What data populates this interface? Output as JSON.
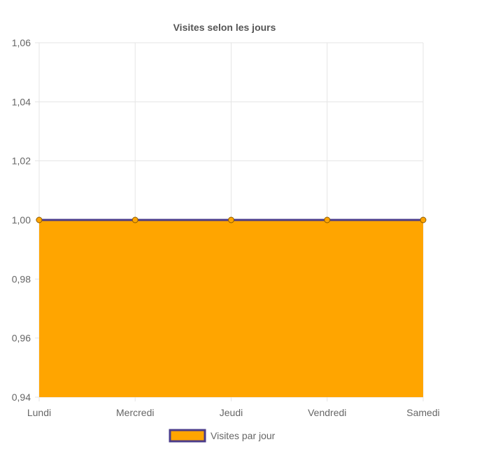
{
  "chart_data": {
    "type": "area",
    "title": "Visites selon les jours",
    "xlabel": "",
    "ylabel": "",
    "categories": [
      "Lundi",
      "Mercredi",
      "Jeudi",
      "Vendredi",
      "Samedi"
    ],
    "series": [
      {
        "name": "Visites par jour",
        "values": [
          1,
          1,
          1,
          1,
          1
        ]
      }
    ],
    "ylim": [
      0.94,
      1.06
    ],
    "yticks": [
      0.94,
      0.96,
      0.98,
      1.0,
      1.02,
      1.04,
      1.06
    ],
    "ytick_labels": [
      "0,94",
      "0,96",
      "0,98",
      "1,00",
      "1,02",
      "1,04",
      "1,06"
    ],
    "grid": true,
    "legend_position": "bottom",
    "colors": {
      "fill": "#ffa500",
      "line": "#4b3c8a",
      "point_fill": "#ffa500",
      "point_stroke": "#8a5a00",
      "grid": "#e5e5e5",
      "text": "#666666",
      "title": "#555555"
    }
  }
}
